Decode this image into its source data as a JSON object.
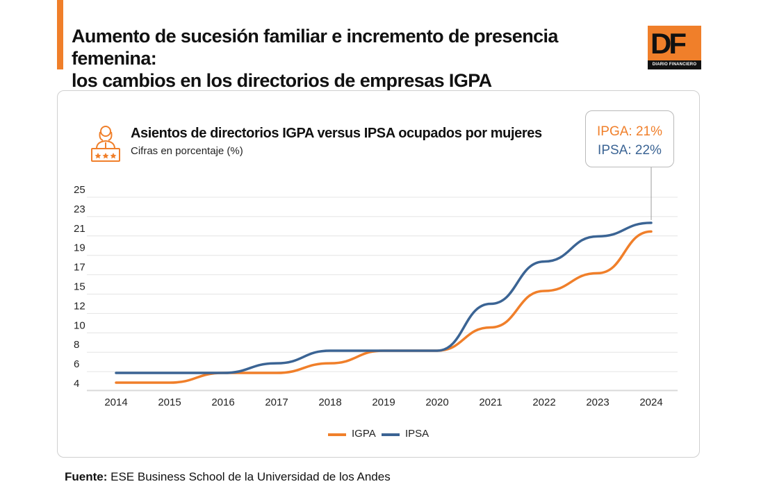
{
  "header": {
    "title_line1": "Aumento de sucesión familiar e incremento de presencia femenina:",
    "title_line2": "los cambios en los directorios de empresas IGPA",
    "logo_text": "DF",
    "logo_subtext": "DIARIO FINANCIERO"
  },
  "callout": {
    "igpa_text": "IPGA: 21%",
    "ipsa_text": "IPSA: 22%"
  },
  "colors": {
    "accent": "#f07f2a",
    "igpa": "#f07f2a",
    "ipsa": "#3b6494"
  },
  "chart_icon": "businesswoman-at-desk-icon",
  "source": {
    "label": "Fuente:",
    "text": "ESE Business School de la Universidad de los Andes"
  },
  "chart_data": {
    "type": "line",
    "title": "Asientos de directorios IGPA versus IPSA ocupados por mujeres",
    "subtitle": "Cifras en porcentaje (%)",
    "x": [
      "2014",
      "2015",
      "2016",
      "2017",
      "2018",
      "2019",
      "2020",
      "2021",
      "2022",
      "2023",
      "2024"
    ],
    "y_ticks": [
      "4",
      "6",
      "8",
      "10",
      "12",
      "15",
      "17",
      "19",
      "21",
      "23",
      "25"
    ],
    "grid": true,
    "legend_position": "bottom",
    "series": [
      {
        "name": "IGPA",
        "values": [
          4,
          4,
          5,
          5,
          6,
          7.3,
          7.3,
          9.7,
          14.2,
          16.3,
          20.6
        ]
      },
      {
        "name": "IPSA",
        "values": [
          5,
          5,
          5,
          6,
          7.3,
          7.3,
          7.3,
          12.2,
          17.5,
          20.1,
          21.5
        ]
      }
    ]
  }
}
